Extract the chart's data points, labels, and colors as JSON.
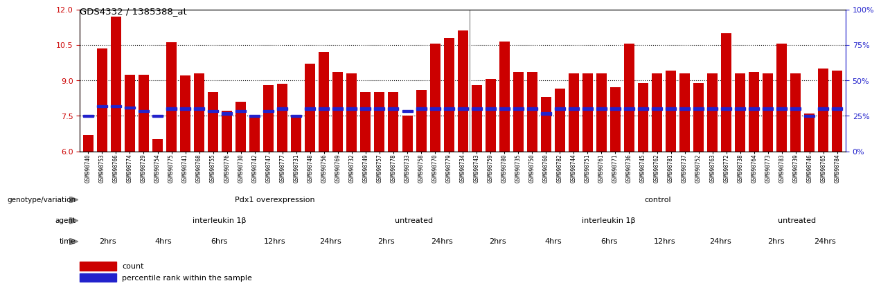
{
  "title": "GDS4332 / 1385388_at",
  "ylim_left": [
    6,
    12
  ],
  "ylim_right": [
    0,
    100
  ],
  "yticks_left": [
    6,
    7.5,
    9,
    10.5,
    12
  ],
  "yticks_right": [
    0,
    25,
    50,
    75,
    100
  ],
  "bar_color": "#CC0000",
  "dot_color": "#2222CC",
  "sample_ids": [
    "GSM998740",
    "GSM998753",
    "GSM998766",
    "GSM998774",
    "GSM998729",
    "GSM998754",
    "GSM998775",
    "GSM998741",
    "GSM998768",
    "GSM998755",
    "GSM998776",
    "GSM998730",
    "GSM998742",
    "GSM998747",
    "GSM998777",
    "GSM998731",
    "GSM998748",
    "GSM998756",
    "GSM998769",
    "GSM998732",
    "GSM998749",
    "GSM998757",
    "GSM998778",
    "GSM998733",
    "GSM998758",
    "GSM998770",
    "GSM998779",
    "GSM998734",
    "GSM998743",
    "GSM998759",
    "GSM998780",
    "GSM998735",
    "GSM998750",
    "GSM998760",
    "GSM998782",
    "GSM998744",
    "GSM998751",
    "GSM998761",
    "GSM998771",
    "GSM998736",
    "GSM998745",
    "GSM998762",
    "GSM998781",
    "GSM998737",
    "GSM998752",
    "GSM998763",
    "GSM998772",
    "GSM998738",
    "GSM998764",
    "GSM998773",
    "GSM998783",
    "GSM998739",
    "GSM998746",
    "GSM998765",
    "GSM998784"
  ],
  "bar_values": [
    6.7,
    10.35,
    11.7,
    9.25,
    9.25,
    6.5,
    10.6,
    9.2,
    9.3,
    8.5,
    7.7,
    8.1,
    7.5,
    8.8,
    8.85,
    7.5,
    9.7,
    10.2,
    9.35,
    9.3,
    8.5,
    8.5,
    8.5,
    7.5,
    8.6,
    10.55,
    10.8,
    11.1,
    8.8,
    9.05,
    10.65,
    9.35,
    9.35,
    8.3,
    8.65,
    9.3,
    9.3,
    9.3,
    8.7,
    10.55,
    8.9,
    9.3,
    9.4,
    9.3,
    8.9,
    9.3,
    11.0,
    9.3,
    9.35,
    9.3,
    10.55,
    9.3,
    7.6,
    9.5,
    9.4
  ],
  "dot_values": [
    7.5,
    7.9,
    7.9,
    7.85,
    7.7,
    7.5,
    7.8,
    7.8,
    7.8,
    7.7,
    7.6,
    7.7,
    7.5,
    7.7,
    7.8,
    7.5,
    7.8,
    7.8,
    7.8,
    7.8,
    7.8,
    7.8,
    7.8,
    7.7,
    7.8,
    7.8,
    7.8,
    7.8,
    7.8,
    7.8,
    7.8,
    7.8,
    7.8,
    7.6,
    7.8,
    7.8,
    7.8,
    7.8,
    7.8,
    7.8,
    7.8,
    7.8,
    7.8,
    7.8,
    7.8,
    7.8,
    7.8,
    7.8,
    7.8,
    7.8,
    7.8,
    7.8,
    7.5,
    7.8,
    7.8
  ],
  "separator_after": 27,
  "genotype_groups": [
    {
      "label": "Pdx1 overexpression",
      "start": 0,
      "end": 27,
      "color": "#aaddaa"
    },
    {
      "label": "control",
      "start": 28,
      "end": 54,
      "color": "#66cc66"
    }
  ],
  "agent_groups": [
    {
      "label": "interleukin 1β",
      "start": 0,
      "end": 19,
      "color": "#bbbbee"
    },
    {
      "label": "untreated",
      "start": 20,
      "end": 27,
      "color": "#9999cc"
    },
    {
      "label": "interleukin 1β",
      "start": 28,
      "end": 47,
      "color": "#bbbbee"
    },
    {
      "label": "untreated",
      "start": 48,
      "end": 54,
      "color": "#9999cc"
    }
  ],
  "time_groups": [
    {
      "label": "2hrs",
      "start": 0,
      "end": 3,
      "color": "#ffdddd"
    },
    {
      "label": "4hrs",
      "start": 4,
      "end": 7,
      "color": "#ffbbaa"
    },
    {
      "label": "6hrs",
      "start": 8,
      "end": 11,
      "color": "#ff9988"
    },
    {
      "label": "12hrs",
      "start": 12,
      "end": 15,
      "color": "#ee7766"
    },
    {
      "label": "24hrs",
      "start": 16,
      "end": 19,
      "color": "#dd5544"
    },
    {
      "label": "2hrs",
      "start": 20,
      "end": 23,
      "color": "#ffdddd"
    },
    {
      "label": "24hrs",
      "start": 24,
      "end": 27,
      "color": "#dd5544"
    },
    {
      "label": "2hrs",
      "start": 28,
      "end": 31,
      "color": "#ffdddd"
    },
    {
      "label": "4hrs",
      "start": 32,
      "end": 35,
      "color": "#ffbbaa"
    },
    {
      "label": "6hrs",
      "start": 36,
      "end": 39,
      "color": "#ff9988"
    },
    {
      "label": "12hrs",
      "start": 40,
      "end": 43,
      "color": "#ee7766"
    },
    {
      "label": "24hrs",
      "start": 44,
      "end": 47,
      "color": "#dd5544"
    },
    {
      "label": "2hrs",
      "start": 48,
      "end": 51,
      "color": "#ffdddd"
    },
    {
      "label": "24hrs",
      "start": 52,
      "end": 54,
      "color": "#dd5544"
    }
  ],
  "row_labels": [
    "genotype/variation",
    "agent",
    "time"
  ],
  "dotted_line_values": [
    7.5,
    9.0,
    10.5
  ],
  "bar_bottom": 6.0,
  "n_samples": 55
}
